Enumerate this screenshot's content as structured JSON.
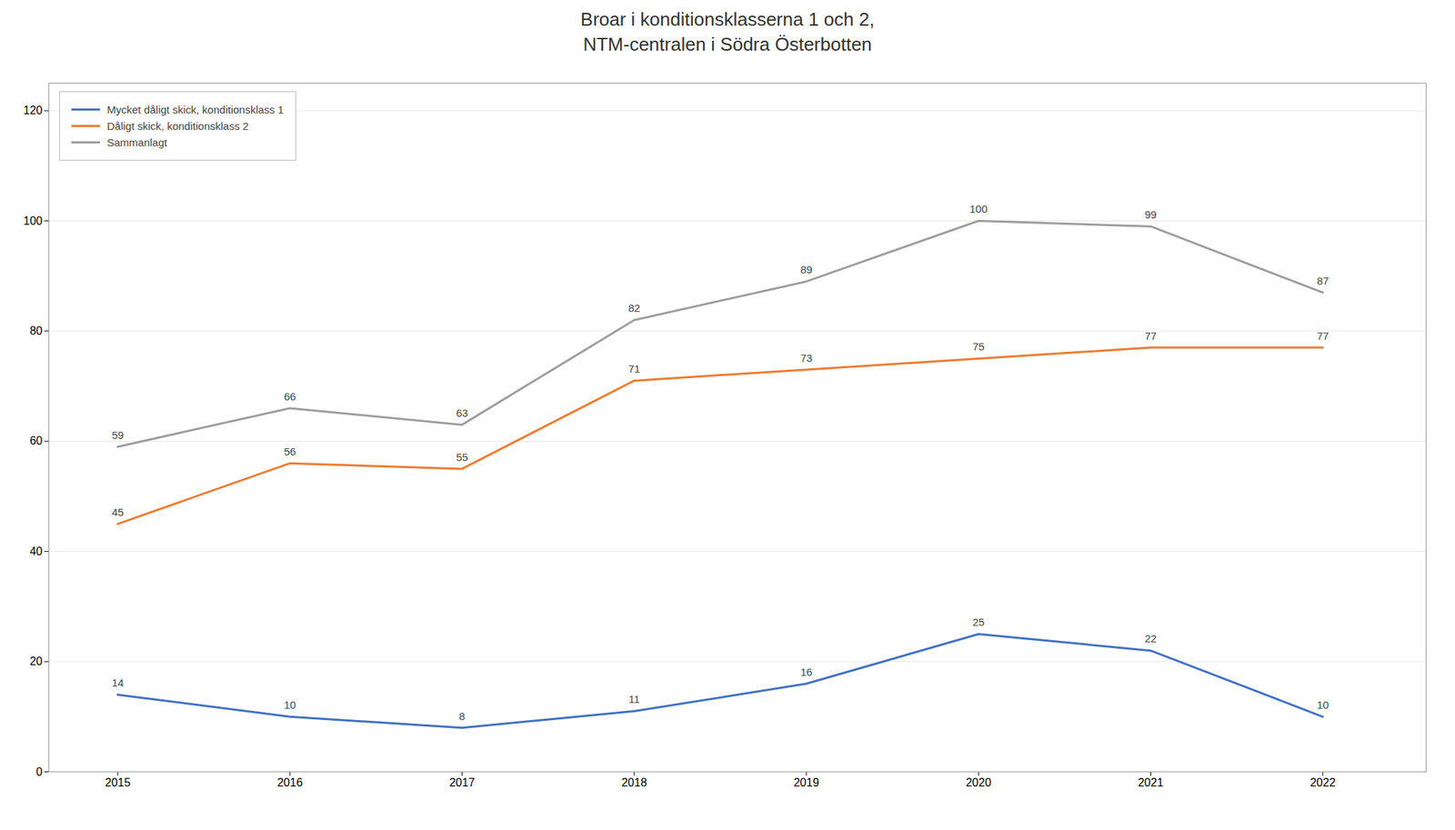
{
  "chart_data": {
    "type": "line",
    "title": "Broar i konditionsklasserna 1 och 2,\nNTM-centralen i Södra Österbotten",
    "x": [
      2015,
      2016,
      2017,
      2018,
      2019,
      2020,
      2021,
      2022
    ],
    "series": [
      {
        "name": "Mycket dåligt skick, konditionsklass 1",
        "color": "#4472C4",
        "values": [
          14,
          10,
          8,
          11,
          16,
          25,
          22,
          10
        ]
      },
      {
        "name": "Dåligt skick, konditionsklass 2",
        "color": "#ED7D31",
        "values": [
          45,
          56,
          55,
          71,
          73,
          75,
          77,
          77
        ]
      },
      {
        "name": "Sammanlagt",
        "color": "#9E9E9E",
        "values": [
          59,
          66,
          63,
          82,
          89,
          100,
          99,
          87
        ]
      }
    ],
    "xlim": [
      2014.6,
      2022.6
    ],
    "xticks": [
      2015,
      2016,
      2017,
      2018,
      2019,
      2020,
      2021,
      2022
    ],
    "ylim": [
      0,
      125
    ],
    "yticks": [
      0,
      20,
      40,
      60,
      80,
      100,
      120
    ],
    "grid": true,
    "legend": "upper left",
    "data_labels": true
  }
}
